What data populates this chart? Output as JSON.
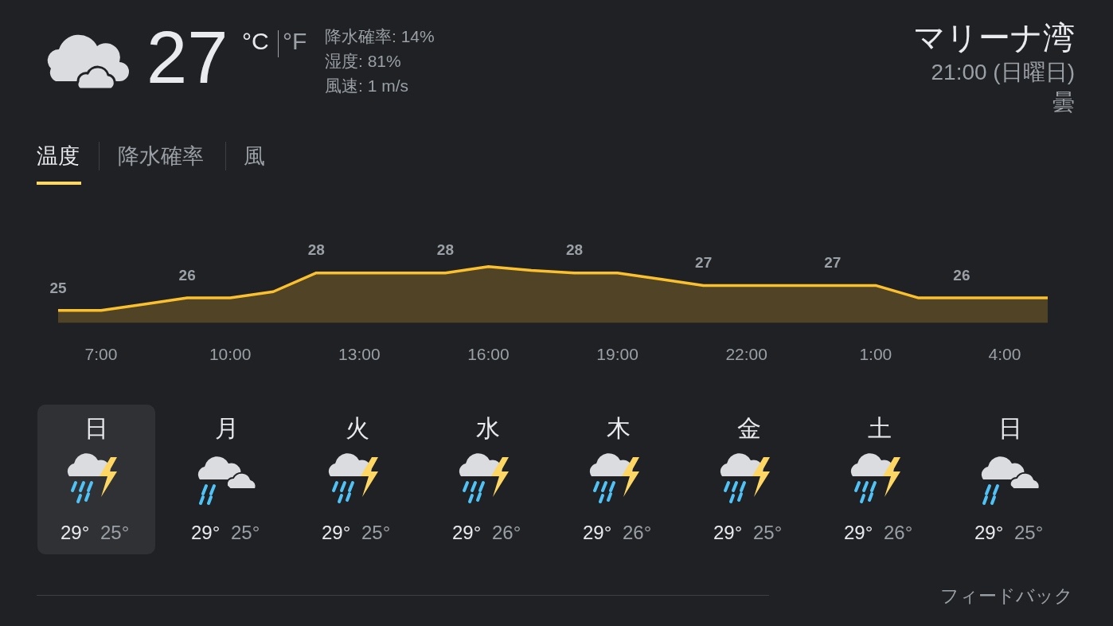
{
  "chart_data": {
    "type": "area",
    "title": "マリーナ湾",
    "subtitle": "21:00 (日曜日)",
    "annotations": [
      "27",
      "°C",
      "°F",
      "降水確率: 14%",
      "湿度: 81%",
      "風速: 1 m/s",
      "曇",
      "温度",
      "降水確率",
      "風",
      "日",
      "29°",
      "25°",
      "月",
      "29°",
      "25°",
      "火",
      "29°",
      "25°",
      "水",
      "29°",
      "26°",
      "木",
      "29°",
      "26°",
      "金",
      "29°",
      "25°",
      "土",
      "29°",
      "26°",
      "日",
      "29°",
      "25°",
      "フィードバック"
    ],
    "categories": [
      null,
      "7:00",
      null,
      null,
      "10:00",
      null,
      null,
      "13:00",
      null,
      null,
      "16:00",
      null,
      null,
      "19:00",
      null,
      null,
      "22:00",
      null,
      null,
      "1:00",
      null,
      null,
      "4:00",
      null
    ],
    "values": [
      25,
      25,
      25.5,
      26,
      26,
      26.5,
      28,
      28,
      28,
      28,
      28.5,
      28.2,
      28,
      28,
      27.5,
      27,
      27,
      27,
      27,
      27,
      26,
      26,
      26,
      26
    ],
    "value_labels": [
      "25",
      null,
      null,
      "26",
      null,
      null,
      "28",
      null,
      null,
      "28",
      null,
      null,
      "28",
      null,
      null,
      "27",
      null,
      null,
      "27",
      null,
      null,
      "26",
      null,
      null
    ],
    "color": "#fbc02d",
    "tick_labels": "x",
    "line_style": "solid"
  }
}
